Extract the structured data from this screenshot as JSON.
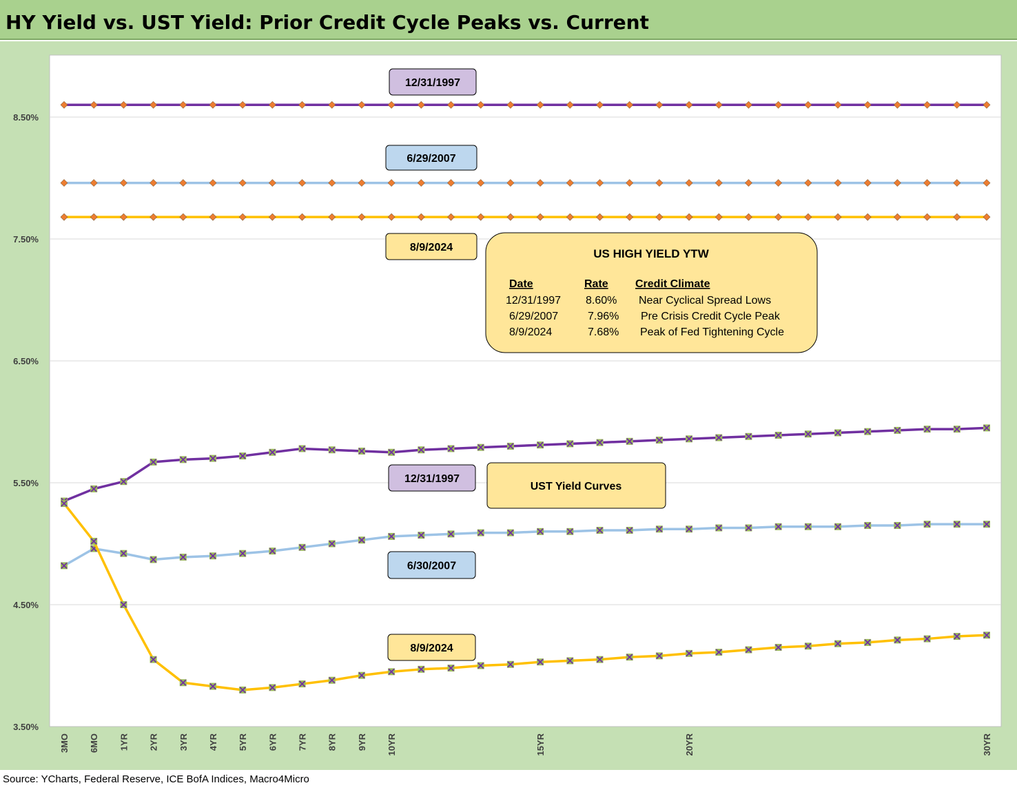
{
  "title": "HY Yield vs. UST Yield: Prior Credit Cycle Peaks vs. Current",
  "source": "Source: YCharts, Federal Reserve, ICE BofA Indices, Macro4Micro",
  "colors": {
    "purple": "#7030a0",
    "lightblue": "#9dc3e6",
    "gold": "#ffc000",
    "hy_marker": "#ed7d31",
    "ust_marker_fill": "#9bbb59",
    "ust_marker_x": "#7030a0",
    "label_purple": "#d0bfe0",
    "label_blue": "#bdd7ee",
    "label_yellow": "#ffe699"
  },
  "chart_data": {
    "type": "line",
    "x": [
      0.25,
      0.5,
      1,
      2,
      3,
      4,
      5,
      6,
      7,
      8,
      9,
      10,
      11,
      12,
      13,
      14,
      15,
      16,
      17,
      18,
      19,
      20,
      21,
      22,
      23,
      24,
      25,
      26,
      27,
      28,
      29,
      30
    ],
    "x_tick_labels": [
      {
        "x": 0.25,
        "label": "3MO"
      },
      {
        "x": 0.5,
        "label": "6MO"
      },
      {
        "x": 1,
        "label": "1YR"
      },
      {
        "x": 2,
        "label": "2YR"
      },
      {
        "x": 3,
        "label": "3YR"
      },
      {
        "x": 4,
        "label": "4YR"
      },
      {
        "x": 5,
        "label": "5YR"
      },
      {
        "x": 6,
        "label": "6YR"
      },
      {
        "x": 7,
        "label": "7YR"
      },
      {
        "x": 8,
        "label": "8YR"
      },
      {
        "x": 9,
        "label": "9YR"
      },
      {
        "x": 10,
        "label": "10YR"
      },
      {
        "x": 15,
        "label": "15YR"
      },
      {
        "x": 20,
        "label": "20YR"
      },
      {
        "x": 30,
        "label": "30YR"
      }
    ],
    "y_ticks": [
      "3.50%",
      "4.50%",
      "5.50%",
      "6.50%",
      "7.50%",
      "8.50%"
    ],
    "y_tick_values": [
      3.5,
      4.5,
      5.5,
      6.5,
      7.5,
      8.5
    ],
    "ylim": [
      3.5,
      9.0
    ],
    "grid": true,
    "series": [
      {
        "name": "12/31/1997",
        "kind": "hy",
        "color": "#7030a0",
        "constant": 8.6
      },
      {
        "name": "6/29/2007",
        "kind": "hy",
        "color": "#9dc3e6",
        "constant": 7.96
      },
      {
        "name": "8/9/2024",
        "kind": "hy",
        "color": "#ffc000",
        "constant": 7.68
      },
      {
        "name": "12/31/1997",
        "kind": "ust",
        "color": "#7030a0",
        "values": [
          5.35,
          5.45,
          5.51,
          5.67,
          5.69,
          5.7,
          5.72,
          5.75,
          5.78,
          5.77,
          5.76,
          5.75,
          5.77,
          5.78,
          5.79,
          5.8,
          5.81,
          5.82,
          5.83,
          5.84,
          5.85,
          5.86,
          5.87,
          5.88,
          5.89,
          5.9,
          5.91,
          5.92,
          5.93,
          5.94,
          5.94,
          5.95
        ]
      },
      {
        "name": "6/30/2007",
        "kind": "ust",
        "color": "#9dc3e6",
        "values": [
          4.82,
          4.96,
          4.92,
          4.87,
          4.89,
          4.9,
          4.92,
          4.94,
          4.97,
          5.0,
          5.03,
          5.06,
          5.07,
          5.08,
          5.09,
          5.09,
          5.1,
          5.1,
          5.11,
          5.11,
          5.12,
          5.12,
          5.13,
          5.13,
          5.14,
          5.14,
          5.14,
          5.15,
          5.15,
          5.16,
          5.16,
          5.16
        ]
      },
      {
        "name": "8/9/2024",
        "kind": "ust",
        "color": "#ffc000",
        "values": [
          5.33,
          5.02,
          4.5,
          4.05,
          3.86,
          3.83,
          3.8,
          3.82,
          3.85,
          3.88,
          3.92,
          3.95,
          3.97,
          3.98,
          4.0,
          4.01,
          4.03,
          4.04,
          4.05,
          4.07,
          4.08,
          4.1,
          4.11,
          4.13,
          4.15,
          4.16,
          4.18,
          4.19,
          4.21,
          4.22,
          4.24,
          4.25
        ]
      }
    ],
    "labels": [
      {
        "text": "12/31/1997",
        "style": "purple"
      },
      {
        "text": "6/29/2007",
        "style": "blue"
      },
      {
        "text": "8/9/2024",
        "style": "yellow"
      },
      {
        "text": "12/31/1997",
        "style": "purple"
      },
      {
        "text": "6/30/2007",
        "style": "blue"
      },
      {
        "text": "8/9/2024",
        "style": "yellow"
      }
    ],
    "ust_label": "UST Yield Curves",
    "info_box": {
      "title": "US HIGH YIELD YTW",
      "headers": [
        "Date",
        "Rate",
        "Credit Climate"
      ],
      "rows": [
        [
          "12/31/1997",
          "8.60%",
          "Near Cyclical Spread Lows"
        ],
        [
          "6/29/2007",
          "7.96%",
          "Pre Crisis Credit Cycle Peak"
        ],
        [
          "8/9/2024",
          "7.68%",
          "Peak of Fed Tightening Cycle"
        ]
      ]
    }
  }
}
